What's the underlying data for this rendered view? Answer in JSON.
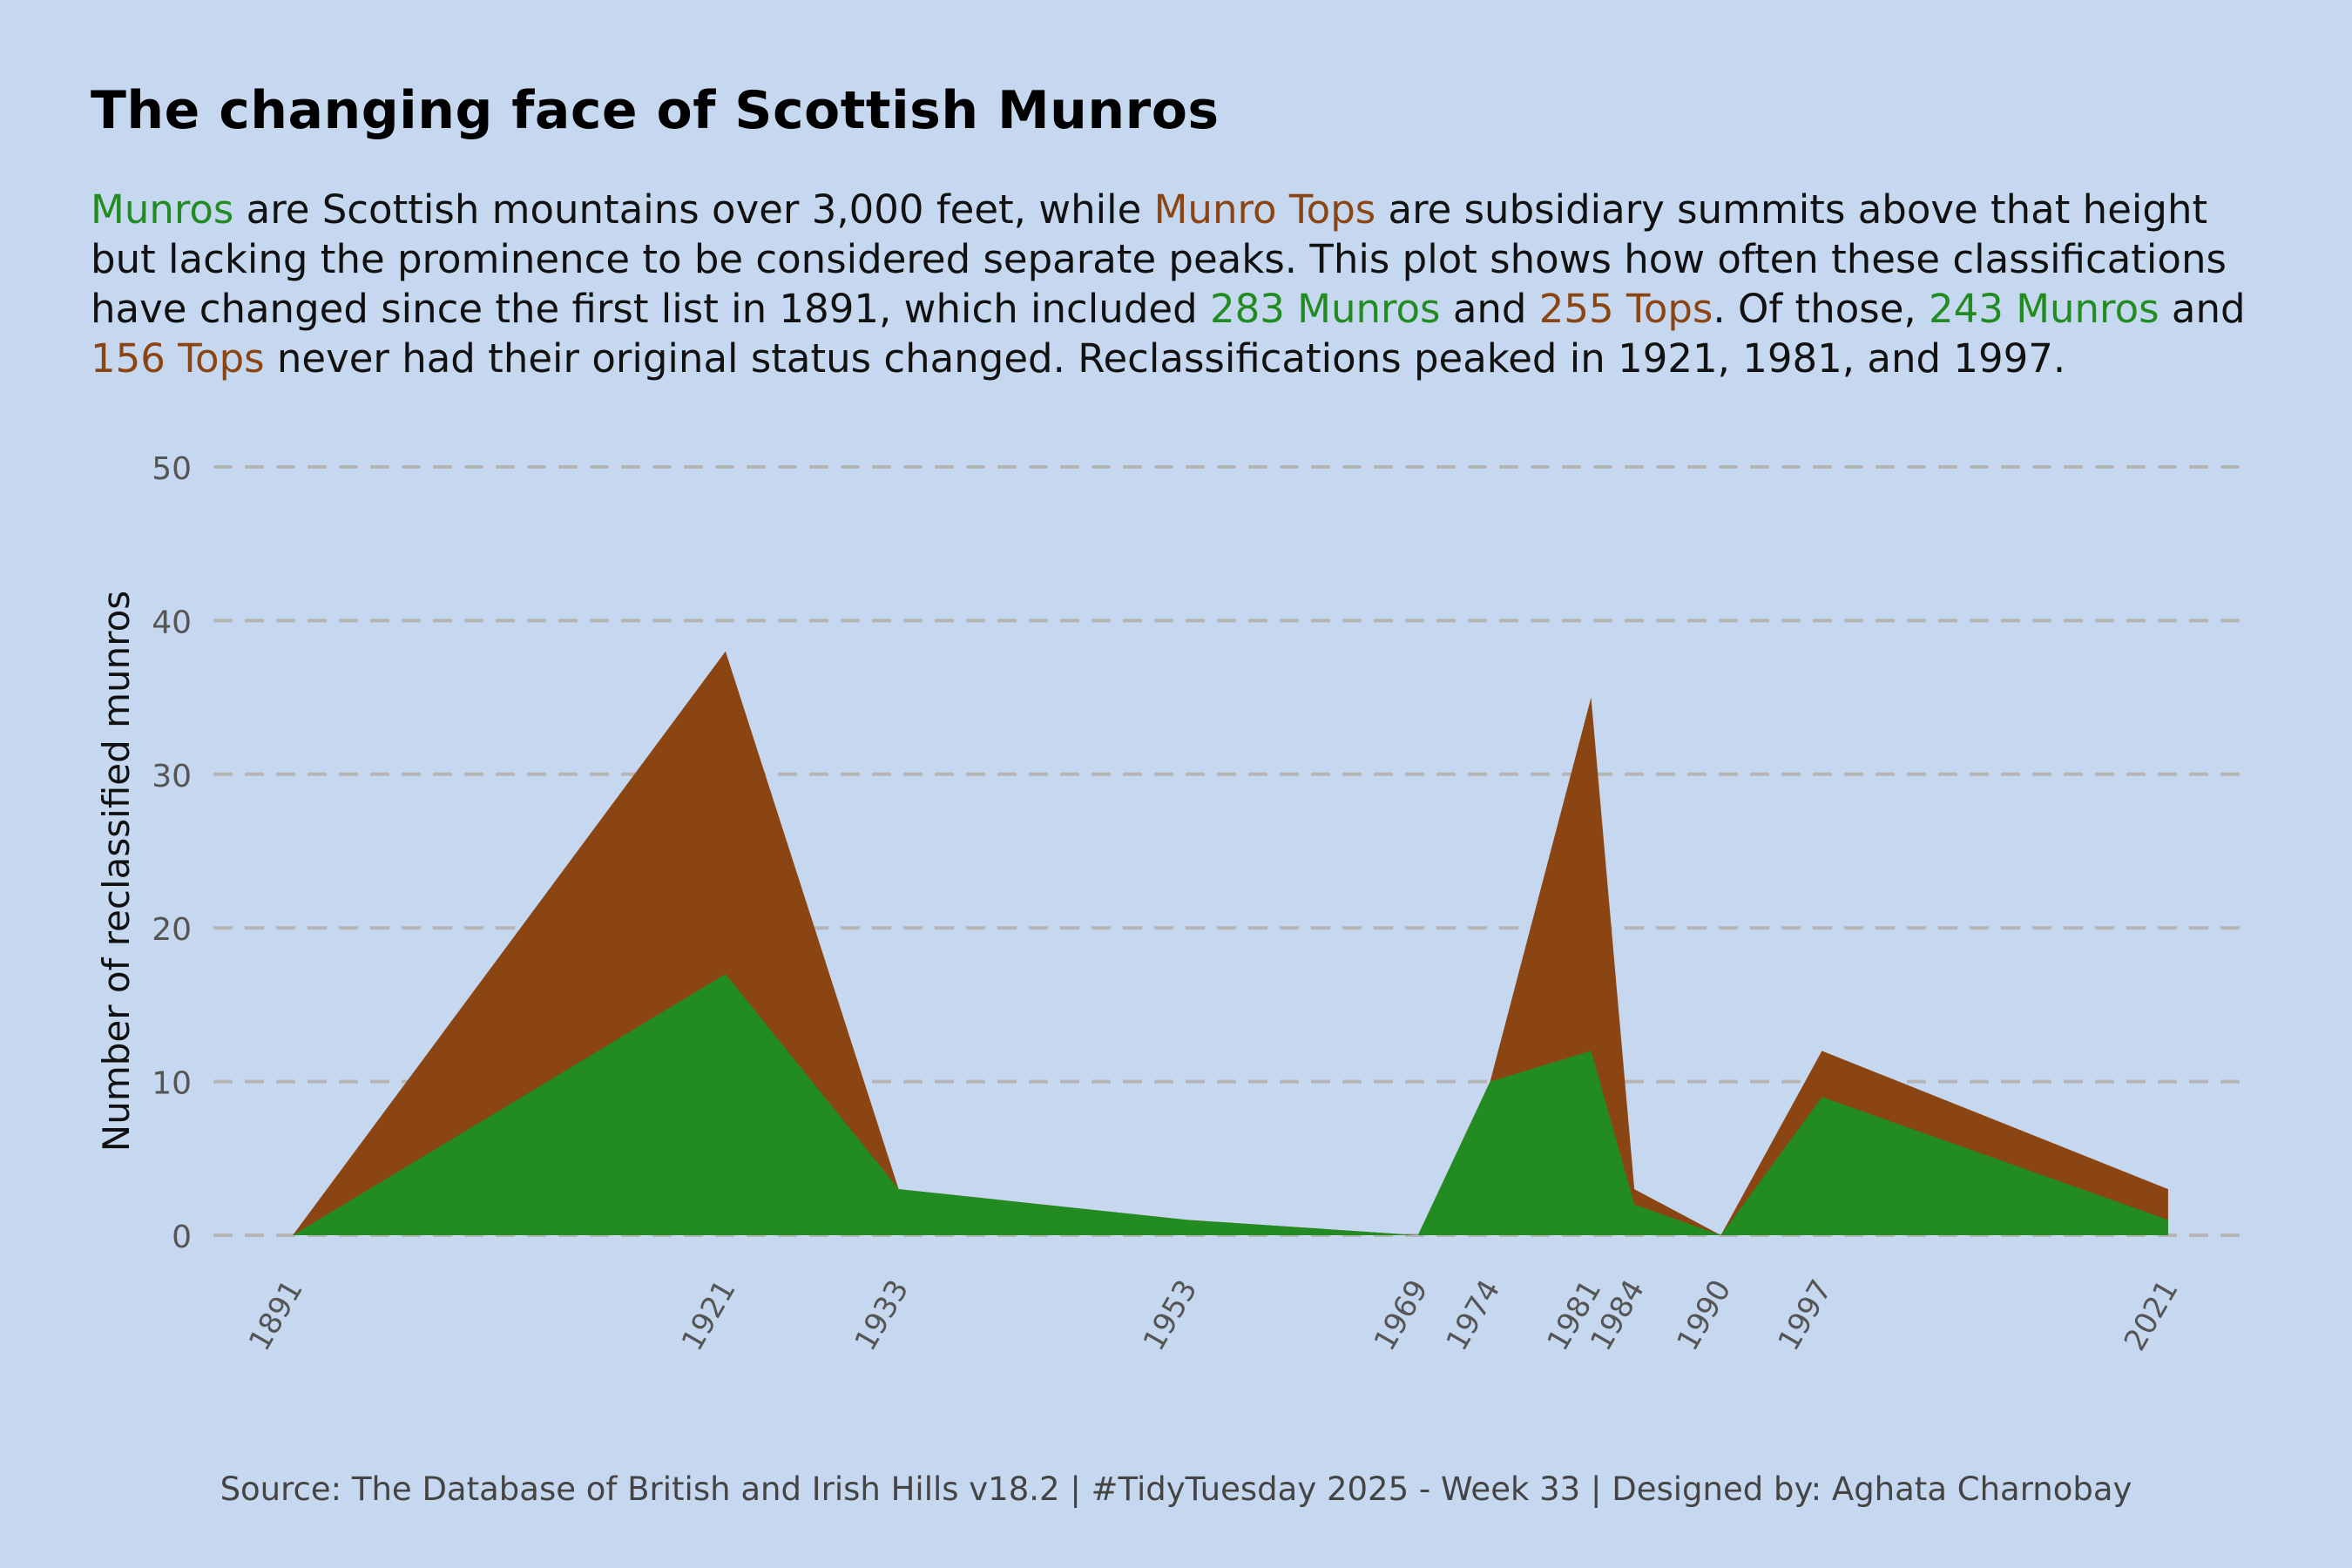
{
  "title": "The changing face of Scottish Munros",
  "subtitle": [
    {
      "text": "Munros",
      "kind": "munro"
    },
    {
      "text": " are Scottish mountains over 3,000 feet, while ",
      "kind": "plain"
    },
    {
      "text": "Munro Tops",
      "kind": "top"
    },
    {
      "text": " are subsidiary summits above that height but lacking the prominence to be considered separate peaks. This plot shows how often these classifications have changed since the first list in 1891, which included ",
      "kind": "plain"
    },
    {
      "text": "283 Munros",
      "kind": "munro"
    },
    {
      "text": " and ",
      "kind": "plain"
    },
    {
      "text": "255 Tops",
      "kind": "top"
    },
    {
      "text": ". Of those, ",
      "kind": "plain"
    },
    {
      "text": "243 Munros",
      "kind": "munro"
    },
    {
      "text": " and ",
      "kind": "plain"
    },
    {
      "text": "156 Tops",
      "kind": "top"
    },
    {
      "text": " never had their original status changed. Reclassifications peaked in 1921, 1981, and 1997.",
      "kind": "plain"
    }
  ],
  "caption": "Source: The Database of British and Irish Hills v18.2 | #TidyTuesday 2025 - Week 33 | Designed by: Aghata Charnobay",
  "colors": {
    "background": "#c6d8ef",
    "munro": "#228b22",
    "top": "#8b4513",
    "grid": "#b5b5b5",
    "tick_text": "#555555"
  },
  "chart_data": {
    "type": "area",
    "stacked": false,
    "x": [
      1891,
      1921,
      1933,
      1953,
      1969,
      1974,
      1981,
      1984,
      1990,
      1997,
      2021
    ],
    "xticks": [
      "1891",
      "1921",
      "1933",
      "1953",
      "1969",
      "1974",
      "1981",
      "1984",
      "1990",
      "1997",
      "2021"
    ],
    "series": [
      {
        "name": "Munro Tops",
        "color": "#8b4513",
        "values": [
          0,
          38,
          3,
          1,
          0,
          10,
          35,
          3,
          0,
          12,
          3
        ]
      },
      {
        "name": "Munros",
        "color": "#228b22",
        "values": [
          0,
          17,
          3,
          1,
          0,
          10,
          12,
          2,
          0,
          9,
          1
        ]
      }
    ],
    "ylabel": "Number of reclassified munros",
    "xlabel": "",
    "ylim": [
      0,
      50
    ],
    "yticks": [
      0,
      10,
      20,
      30,
      40,
      50
    ],
    "grid": "horizontal dashed",
    "legend": "none"
  }
}
